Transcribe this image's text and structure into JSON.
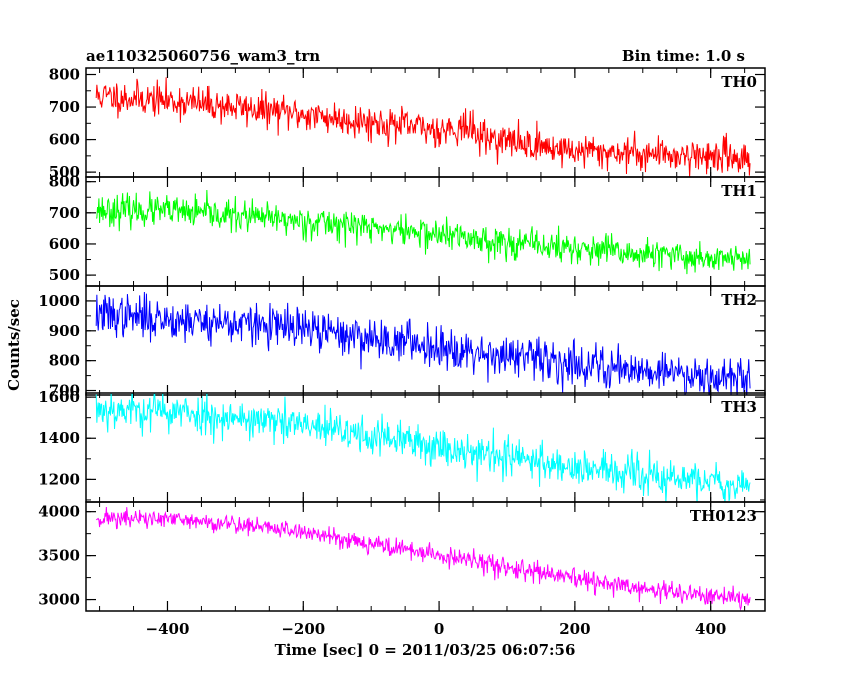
{
  "header": {
    "title": "ae110325060756_wam3_trn",
    "bin_time": "Bin time: 1.0 s"
  },
  "axes": {
    "xlabel": "Time [sec] 0 = 2011/03/25 06:07:56",
    "ylabel": "Counts/sec"
  },
  "chart_data": {
    "type": "line",
    "xlim": [
      -520,
      480
    ],
    "x_ticks": [
      -400,
      -200,
      0,
      200,
      400
    ],
    "x_tick_labels": [
      "−400",
      "−200",
      "0",
      "200",
      "400"
    ],
    "x_start": -505,
    "x_end": 458,
    "x_step": 1,
    "panels": [
      {
        "label": "TH0",
        "color": "#ff0000",
        "ylim": [
          485,
          820
        ],
        "yticks": [
          500,
          600,
          700,
          800
        ],
        "trend": [
          [
            -505,
            735
          ],
          [
            -400,
            720
          ],
          [
            -300,
            700
          ],
          [
            -150,
            665
          ],
          [
            0,
            630
          ],
          [
            40,
            640
          ],
          [
            60,
            610
          ],
          [
            120,
            590
          ],
          [
            200,
            565
          ],
          [
            300,
            558
          ],
          [
            458,
            545
          ]
        ],
        "noise": 26,
        "seed": 11
      },
      {
        "label": "TH1",
        "color": "#00ff00",
        "ylim": [
          465,
          815
        ],
        "yticks": [
          500,
          600,
          700,
          800
        ],
        "trend": [
          [
            -505,
            710
          ],
          [
            -400,
            705
          ],
          [
            -300,
            690
          ],
          [
            -150,
            665
          ],
          [
            0,
            630
          ],
          [
            100,
            605
          ],
          [
            200,
            585
          ],
          [
            300,
            565
          ],
          [
            458,
            550
          ]
        ],
        "noise": 25,
        "seed": 23
      },
      {
        "label": "TH2",
        "color": "#0000ff",
        "ylim": [
          685,
          1050
        ],
        "yticks": [
          700,
          800,
          900,
          1000
        ],
        "trend": [
          [
            -505,
            955
          ],
          [
            -400,
            940
          ],
          [
            -300,
            925
          ],
          [
            -200,
            905
          ],
          [
            -100,
            875
          ],
          [
            0,
            850
          ],
          [
            100,
            815
          ],
          [
            200,
            790
          ],
          [
            300,
            770
          ],
          [
            458,
            740
          ]
        ],
        "noise": 35,
        "seed": 37
      },
      {
        "label": "TH3",
        "color": "#00ffff",
        "ylim": [
          1090,
          1620
        ],
        "yticks": [
          1200,
          1400,
          1600
        ],
        "trend": [
          [
            -505,
            1545
          ],
          [
            -400,
            1530
          ],
          [
            -300,
            1500
          ],
          [
            -200,
            1460
          ],
          [
            -100,
            1410
          ],
          [
            0,
            1360
          ],
          [
            100,
            1310
          ],
          [
            200,
            1260
          ],
          [
            300,
            1215
          ],
          [
            458,
            1175
          ]
        ],
        "noise": 48,
        "seed": 53
      },
      {
        "label": "TH0123",
        "color": "#ff00ff",
        "ylim": [
          2870,
          4110
        ],
        "yticks": [
          3000,
          3500,
          4000
        ],
        "trend": [
          [
            -505,
            3930
          ],
          [
            -400,
            3910
          ],
          [
            -300,
            3860
          ],
          [
            -200,
            3770
          ],
          [
            -100,
            3640
          ],
          [
            0,
            3500
          ],
          [
            100,
            3370
          ],
          [
            200,
            3230
          ],
          [
            300,
            3120
          ],
          [
            458,
            2990
          ]
        ],
        "noise": 55,
        "seed": 71
      }
    ]
  }
}
